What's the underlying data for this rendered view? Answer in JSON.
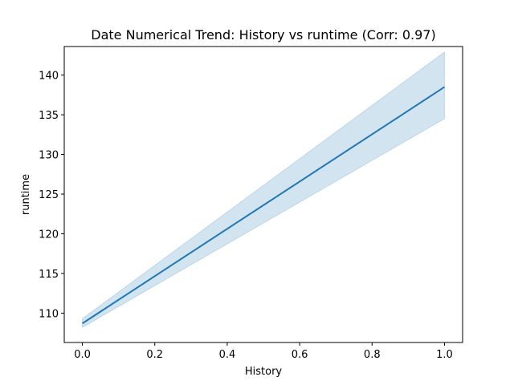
{
  "chart_data": {
    "type": "line",
    "title": "Date Numerical Trend: History vs runtime (Corr: 0.97)",
    "xlabel": "History",
    "ylabel": "runtime",
    "xlim": [
      -0.05,
      1.05
    ],
    "ylim": [
      106.3,
      143.6
    ],
    "xticks": [
      0.0,
      0.2,
      0.4,
      0.6,
      0.8,
      1.0
    ],
    "xtick_labels": [
      "0.0",
      "0.2",
      "0.4",
      "0.6",
      "0.8",
      "1.0"
    ],
    "yticks": [
      110,
      115,
      120,
      125,
      130,
      135,
      140
    ],
    "ytick_labels": [
      "110",
      "115",
      "120",
      "125",
      "130",
      "135",
      "140"
    ],
    "grid": false,
    "legend": false,
    "colors": {
      "line": "#1f77b4",
      "band_fill": "#1f77b4",
      "band_fill_opacity": 0.2
    },
    "series": [
      {
        "x": [
          0.0,
          1.0
        ],
        "y": [
          108.7,
          138.5
        ],
        "ci_lower": [
          108.2,
          134.5
        ],
        "ci_upper": [
          109.3,
          142.9
        ]
      }
    ]
  }
}
